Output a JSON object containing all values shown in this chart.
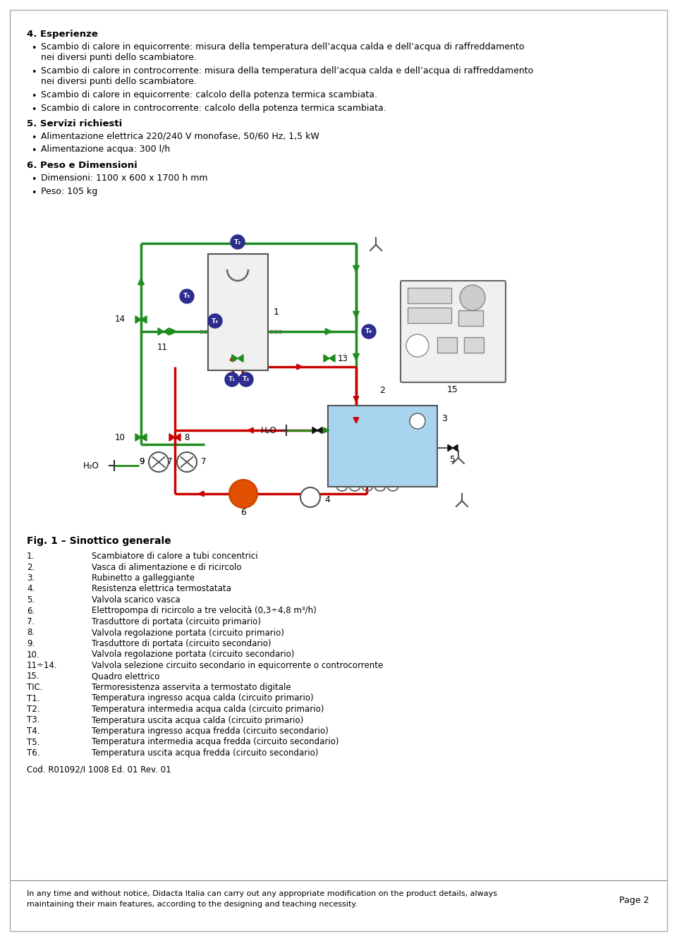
{
  "bg_color": "#ffffff",
  "section4_title": "4. Esperienze",
  "section4_bullets": [
    "Scambio di calore in equicorrente: misura della temperatura dell’acqua calda e dell’acqua di raffreddamento nei diversi punti dello scambiatore.",
    "Scambio di calore in controcorrente: misura della temperatura dell’acqua calda e dell’acqua di raffreddamento nei diversi punti dello scambiatore.",
    "Scambio di calore in equicorrente: calcolo della potenza termica scambiata.",
    "Scambio di calore in controcorrente: calcolo della potenza termica scambiata."
  ],
  "section5_title": "5. Servizi richiesti",
  "section5_bullets": [
    "Alimentazione elettrica 220/240 V monofase, 50/60 Hz, 1,5 kW",
    "Alimentazione acqua: 300 l/h"
  ],
  "section6_title": "6. Peso e Dimensioni",
  "section6_bullets": [
    "Dimensioni: 1100 x 600 x 1700 h mm",
    "Peso:  105 kg"
  ],
  "fig_caption": "Fig. 1 – Sinottico generale",
  "legend_items": [
    [
      "1.",
      "Scambiatore di calore a tubi concentrici"
    ],
    [
      "2.",
      "Vasca di alimentazione e di ricircolo"
    ],
    [
      "3.",
      "Rubinetto a galleggiante"
    ],
    [
      "4.",
      "Resistenza elettrica termostatata"
    ],
    [
      "5.",
      "Valvola scarico vasca"
    ],
    [
      "6.",
      "Elettropompa di ricircolo a tre velocità (0,3÷4,8 m³/h)"
    ],
    [
      "7.",
      "Trasduttore di portata (circuito primario)"
    ],
    [
      "8.",
      "Valvola regolazione portata (circuito primario)"
    ],
    [
      "9.",
      "Trasduttore di portata (circuito secondario)"
    ],
    [
      "10.",
      "Valvola regolazione portata (circuito secondario)"
    ],
    [
      "11÷14.",
      "Valvola selezione circuito secondario in equicorrente o controcorrente"
    ],
    [
      "15.",
      "Quadro elettrico"
    ],
    [
      "TIC.",
      "Termoresistenza asservita a termostato digitale"
    ],
    [
      "T1.",
      "Temperatura ingresso acqua calda (circuito primario)"
    ],
    [
      "T2.",
      "Temperatura intermedia acqua calda (circuito primario)"
    ],
    [
      "T3.",
      "Temperatura uscita acqua calda (circuito primario)"
    ],
    [
      "T4.",
      "Temperatura ingresso acqua fredda (circuito secondario)"
    ],
    [
      "T5.",
      "Temperatura intermedia acqua fredda (circuito secondario)"
    ],
    [
      "T6.",
      "Temperatura uscita acqua fredda (circuito secondario)"
    ]
  ],
  "cod_line": "Cod. R01092/I 1008 Ed. 01 Rev. 01",
  "footer_line1": "In any time and without notice, Didacta Italia can carry out any appropriate modification on the product details, always",
  "footer_line2": "maintaining their main features, according to the designing and teaching necessity.",
  "page_label": "Page 2",
  "green": "#1e8c1e",
  "red": "#cc0000",
  "dark_blue": "#2d2d8f",
  "light_blue": "#a8d4f0"
}
